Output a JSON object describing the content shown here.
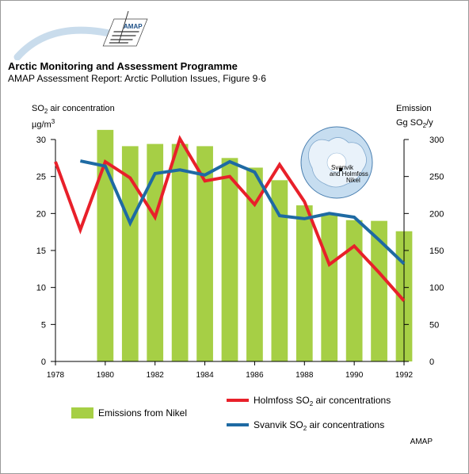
{
  "header": {
    "logo_text": "AMAP",
    "title": "Arctic Monitoring and Assessment Programme",
    "subtitle": "AMAP Assessment Report: Arctic Pollution Issues, Figure 9·6"
  },
  "footer": {
    "credit": "AMAP"
  },
  "map": {
    "labels": [
      "Svanvik",
      "and Holmfoss",
      "Nikel"
    ]
  },
  "colors": {
    "bars": "#a6cf45",
    "holmfoss": "#e8202a",
    "svanvik": "#1e6aa3"
  },
  "chart_data": {
    "type": "bar+line",
    "left_axis": {
      "label_parts": [
        "SO",
        "2",
        " air concentration"
      ],
      "unit_parts": [
        "µg/m",
        "3"
      ],
      "range": [
        0,
        30
      ],
      "ticks": [
        0,
        5,
        10,
        15,
        20,
        25,
        30
      ]
    },
    "right_axis": {
      "label": "Emission",
      "unit_parts": [
        "Gg SO",
        "2",
        "/y"
      ],
      "range": [
        0,
        300
      ],
      "ticks": [
        0,
        50,
        100,
        150,
        200,
        250,
        300
      ]
    },
    "x_axis": {
      "range": [
        1978,
        1992
      ],
      "ticks": [
        1978,
        1980,
        1982,
        1984,
        1986,
        1988,
        1990,
        1992
      ]
    },
    "grid": false,
    "bars": {
      "name": "Emissions from Nikel",
      "axis": "right",
      "x": [
        1980,
        1981,
        1982,
        1983,
        1984,
        1985,
        1986,
        1987,
        1988,
        1989,
        1990,
        1991,
        1992
      ],
      "values": [
        313,
        291,
        294,
        294,
        291,
        275,
        262,
        245,
        211,
        200,
        191,
        190,
        176
      ]
    },
    "series": [
      {
        "name_parts": [
          "Holmfoss SO",
          "2",
          " air concentrations"
        ],
        "axis": "left",
        "x": [
          1978,
          1979,
          1980,
          1981,
          1982,
          1983,
          1984,
          1985,
          1986,
          1987,
          1988,
          1989,
          1990,
          1991,
          1992
        ],
        "values": [
          27.0,
          17.8,
          27.0,
          24.8,
          19.5,
          30.1,
          24.4,
          25.0,
          21.2,
          26.6,
          21.6,
          13.1,
          15.6,
          12.0,
          8.2
        ]
      },
      {
        "name_parts": [
          "Svanvik SO",
          "2",
          " air concentrations"
        ],
        "axis": "left",
        "x": [
          1979,
          1980,
          1981,
          1982,
          1983,
          1984,
          1985,
          1986,
          1987,
          1988,
          1989,
          1990,
          1991,
          1992
        ],
        "values": [
          27.1,
          26.4,
          18.7,
          25.4,
          25.9,
          25.2,
          27.0,
          25.6,
          19.7,
          19.3,
          20.0,
          19.5,
          16.4,
          13.2
        ]
      }
    ],
    "legend": {
      "placement": "bottom",
      "bars_label": "Emissions from Nikel"
    }
  }
}
